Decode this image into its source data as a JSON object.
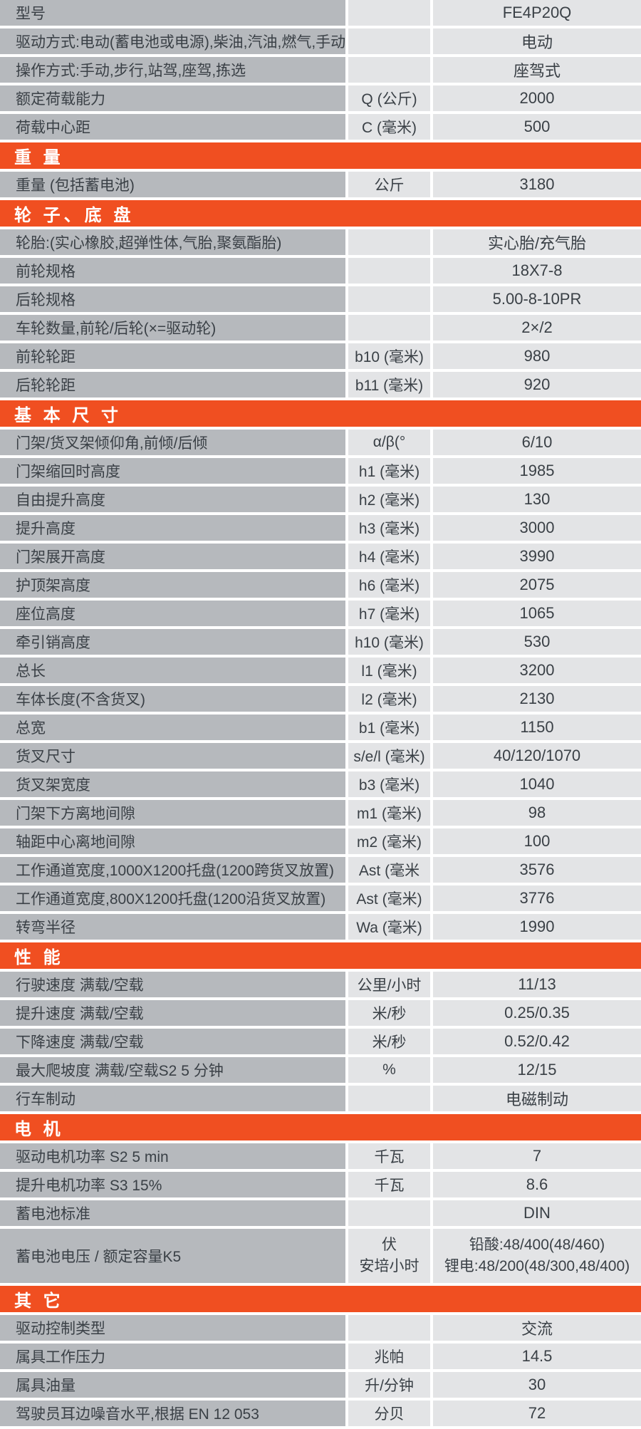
{
  "colors": {
    "accent": "#f04f21",
    "label_bg": "#b6b9bd",
    "cell_bg": "#e3e4e6"
  },
  "sections": [
    {
      "header": null,
      "rows": [
        {
          "label": "型号",
          "unit": "",
          "value": "FE4P20Q"
        },
        {
          "label": "驱动方式:电动(蓄电池或电源),柴油,汽油,燃气,手动",
          "unit": "",
          "value": "电动"
        },
        {
          "label": "操作方式:手动,步行,站驾,座驾,拣选",
          "unit": "",
          "value": "座驾式"
        },
        {
          "label": "额定荷载能力",
          "unit": "Q (公斤)",
          "value": "2000"
        },
        {
          "label": "荷载中心距",
          "unit": "C (毫米)",
          "value": "500"
        }
      ]
    },
    {
      "header": "重 量",
      "rows": [
        {
          "label": "重量 (包括蓄电池)",
          "unit": "公斤",
          "value": "3180"
        }
      ]
    },
    {
      "header": "轮 子、底 盘",
      "rows": [
        {
          "label": "轮胎:(实心橡胶,超弹性体,气胎,聚氨酯胎)",
          "unit": "",
          "value": "实心胎/充气胎"
        },
        {
          "label": "前轮规格",
          "unit": "",
          "value": "18X7-8"
        },
        {
          "label": "后轮规格",
          "unit": "",
          "value": "5.00-8-10PR"
        },
        {
          "label": "车轮数量,前轮/后轮(×=驱动轮)",
          "unit": "",
          "value": "2×/2"
        },
        {
          "label": "前轮轮距",
          "unit": "b10 (毫米)",
          "value": "980"
        },
        {
          "label": "后轮轮距",
          "unit": "b11 (毫米)",
          "value": "920"
        }
      ]
    },
    {
      "header": "基 本 尺 寸",
      "rows": [
        {
          "label": "门架/货叉架倾仰角,前倾/后倾",
          "unit": "α/β(°",
          "value": "6/10"
        },
        {
          "label": "门架缩回时高度",
          "unit": "h1 (毫米)",
          "value": "1985"
        },
        {
          "label": "自由提升高度",
          "unit": "h2 (毫米)",
          "value": "130"
        },
        {
          "label": "提升高度",
          "unit": "h3 (毫米)",
          "value": "3000"
        },
        {
          "label": "门架展开高度",
          "unit": "h4 (毫米)",
          "value": "3990"
        },
        {
          "label": "护顶架高度",
          "unit": "h6 (毫米)",
          "value": "2075"
        },
        {
          "label": "座位高度",
          "unit": "h7 (毫米)",
          "value": "1065"
        },
        {
          "label": "牵引销高度",
          "unit": "h10 (毫米)",
          "value": "530"
        },
        {
          "label": "总长",
          "unit": "l1 (毫米)",
          "value": "3200"
        },
        {
          "label": "车体长度(不含货叉)",
          "unit": "l2 (毫米)",
          "value": "2130"
        },
        {
          "label": "总宽",
          "unit": "b1 (毫米)",
          "value": "1150"
        },
        {
          "label": "货叉尺寸",
          "unit": "s/e/l (毫米)",
          "value": "40/120/1070"
        },
        {
          "label": "货叉架宽度",
          "unit": "b3 (毫米)",
          "value": "1040"
        },
        {
          "label": "门架下方离地间隙",
          "unit": "m1 (毫米)",
          "value": "98"
        },
        {
          "label": "轴距中心离地间隙",
          "unit": "m2 (毫米)",
          "value": "100"
        },
        {
          "label": "工作通道宽度,1000X1200托盘(1200跨货叉放置)",
          "unit": "Ast (毫米",
          "value": "3576"
        },
        {
          "label": "工作通道宽度,800X1200托盘(1200沿货叉放置)",
          "unit": "Ast (毫米)",
          "value": "3776"
        },
        {
          "label": "转弯半径",
          "unit": "Wa (毫米)",
          "value": "1990"
        }
      ]
    },
    {
      "header": "性 能",
      "rows": [
        {
          "label": "行驶速度 满载/空载",
          "unit": "公里/小时",
          "value": "11/13"
        },
        {
          "label": "提升速度 满载/空载",
          "unit": "米/秒",
          "value": "0.25/0.35"
        },
        {
          "label": "下降速度 满载/空载",
          "unit": "米/秒",
          "value": "0.52/0.42"
        },
        {
          "label": "最大爬坡度 满载/空载S2 5 分钟",
          "unit": "%",
          "value": "12/15"
        },
        {
          "label": "行车制动",
          "unit": "",
          "value": "电磁制动"
        }
      ]
    },
    {
      "header": "电 机",
      "rows": [
        {
          "label": "驱动电机功率 S2 5 min",
          "unit": "千瓦",
          "value": "7"
        },
        {
          "label": "提升电机功率 S3 15%",
          "unit": "千瓦",
          "value": "8.6"
        },
        {
          "label": "蓄电池标准",
          "unit": "",
          "value": "DIN"
        },
        {
          "label": "蓄电池电压 / 额定容量K5",
          "unit_lines": [
            "伏",
            "安培小时"
          ],
          "value_lines": [
            "铅酸:48/400(48/460)",
            "锂电:48/200(48/300,48/400)"
          ]
        }
      ]
    },
    {
      "header": "其 它",
      "rows": [
        {
          "label": "驱动控制类型",
          "unit": "",
          "value": "交流"
        },
        {
          "label": "属具工作压力",
          "unit": "兆帕",
          "value": "14.5"
        },
        {
          "label": "属具油量",
          "unit": "升/分钟",
          "value": "30"
        },
        {
          "label": "驾驶员耳边噪音水平,根据 EN 12 053",
          "unit": "分贝",
          "value": "72"
        }
      ]
    }
  ]
}
